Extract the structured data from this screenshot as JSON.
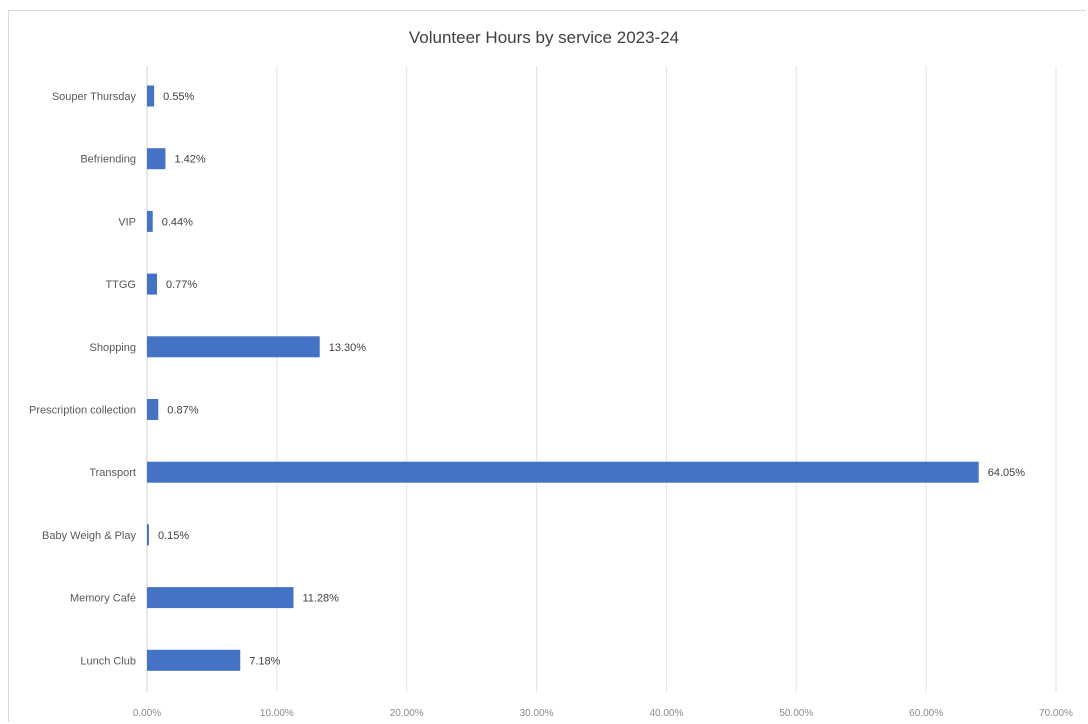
{
  "chart_data": {
    "type": "bar",
    "orientation": "horizontal",
    "title": "Volunteer Hours by service 2023-24",
    "categories": [
      "Souper Thursday",
      "Befriending",
      "VIP",
      "TTGG",
      "Shopping",
      "Prescription collection",
      "Transport",
      "Baby Weigh & Play",
      "Memory Café",
      "Lunch Club"
    ],
    "values": [
      0.55,
      1.42,
      0.44,
      0.77,
      13.3,
      0.87,
      64.05,
      0.15,
      11.28,
      7.18
    ],
    "data_labels": [
      "0.55%",
      "1.42%",
      "0.44%",
      "0.77%",
      "13.30%",
      "0.87%",
      "64.05%",
      "0.15%",
      "11.28%",
      "7.18%"
    ],
    "x_ticks": [
      "0.00%",
      "10.00%",
      "20.00%",
      "30.00%",
      "40.00%",
      "50.00%",
      "60.00%",
      "70.00%"
    ],
    "xlim": [
      0,
      70
    ],
    "xlabel": "",
    "ylabel": "",
    "grid": true,
    "legend": "none",
    "colors": {
      "bar": "#4472c4",
      "grid": "#e3e3e3"
    }
  }
}
